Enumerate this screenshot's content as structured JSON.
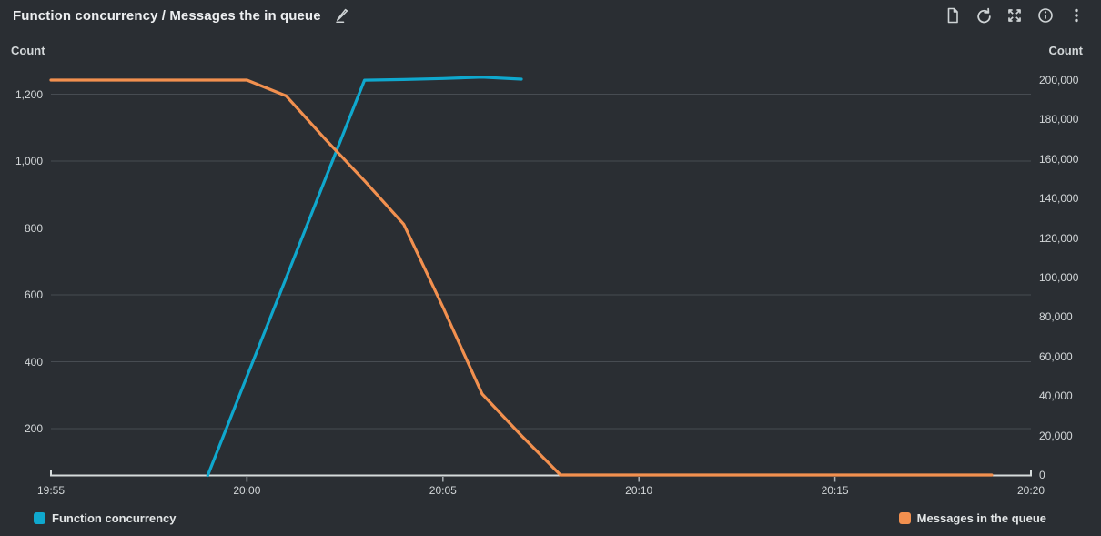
{
  "header": {
    "title": "Function concurrency / Messages the in queue",
    "icons": [
      "edit-pencil-icon",
      "document-icon",
      "refresh-icon",
      "expand-icon",
      "info-icon",
      "kebab-menu-icon"
    ]
  },
  "chart_data": {
    "type": "line",
    "title": "Function concurrency / Messages the in queue",
    "grid": "horizontal",
    "legend_position": "bottom",
    "x_axis": {
      "start": "19:55",
      "end": "20:20",
      "span_minutes": 25,
      "tick_labels": [
        "19:55",
        "20:00",
        "20:05",
        "20:10",
        "20:15",
        "20:20"
      ],
      "tick_minutes": [
        0,
        5,
        10,
        15,
        20,
        25
      ],
      "inner_tick_minutes": [
        5,
        10,
        15,
        20
      ]
    },
    "left_axis": {
      "title": "Count",
      "tick_labels": [
        "1,200",
        "1,000",
        "800",
        "600",
        "400",
        "200"
      ],
      "tick_values": [
        1200,
        1000,
        800,
        600,
        400,
        200
      ],
      "range": [
        60,
        1260
      ]
    },
    "right_axis": {
      "title": "Count",
      "tick_labels": [
        "200,000",
        "180,000",
        "160,000",
        "140,000",
        "120,000",
        "100,000",
        "80,000",
        "60,000",
        "40,000",
        "20,000",
        "0"
      ],
      "tick_values": [
        200000,
        180000,
        160000,
        140000,
        120000,
        100000,
        80000,
        60000,
        40000,
        20000,
        0
      ],
      "range": [
        0,
        201000
      ]
    },
    "series": [
      {
        "name": "Function concurrency",
        "color": "#0fa8ce",
        "axis": "left",
        "points_min_value": [
          [
            4,
            60
          ],
          [
            5,
            356
          ],
          [
            6,
            651
          ],
          [
            7,
            947
          ],
          [
            8,
            1242
          ],
          [
            9,
            1244
          ],
          [
            10,
            1247
          ],
          [
            11,
            1251
          ],
          [
            12,
            1245
          ]
        ]
      },
      {
        "name": "Messages in the queue",
        "color": "#f2904f",
        "axis": "right",
        "points_min_value": [
          [
            0,
            200000
          ],
          [
            1,
            200000
          ],
          [
            2,
            200000
          ],
          [
            3,
            200000
          ],
          [
            4,
            200000
          ],
          [
            5,
            200000
          ],
          [
            6,
            192000
          ],
          [
            7,
            170000
          ],
          [
            8,
            149000
          ],
          [
            9,
            127000
          ],
          [
            10,
            85000
          ],
          [
            11,
            41000
          ],
          [
            12,
            20000
          ],
          [
            13,
            0
          ],
          [
            14,
            0
          ],
          [
            15,
            0
          ],
          [
            16,
            0
          ],
          [
            17,
            0
          ],
          [
            18,
            0
          ],
          [
            19,
            0
          ],
          [
            20,
            0
          ],
          [
            21,
            0
          ],
          [
            22,
            0
          ],
          [
            23,
            0
          ],
          [
            24,
            0
          ]
        ]
      }
    ]
  },
  "colors": {
    "background": "#2a2e33",
    "gridline": "#474c52",
    "axis_line": "#d5dbdb",
    "tick_text": "#d3d7d9",
    "series_blue": "#0fa8ce",
    "series_orange": "#f2904f"
  }
}
